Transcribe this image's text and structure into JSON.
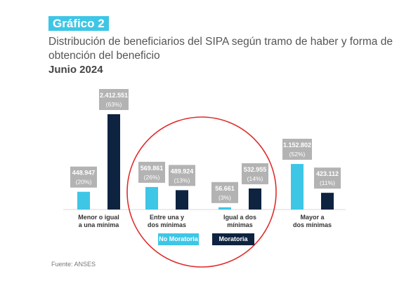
{
  "header": {
    "badge": "Gráfico 2",
    "title": "Distribución de beneficiarios del SIPA según tramo de haber y forma de obtención del beneficio",
    "subtitle": "Junio 2024"
  },
  "source": "Fuente: ANSES",
  "colors": {
    "no_moratoria": "#3ec6e6",
    "moratoria": "#0e2340",
    "badge": "#3ec6e6",
    "label_box": "#b3b3b3",
    "circle": "#e02b2b",
    "baseline": "#d9d9d9"
  },
  "chart_data": {
    "type": "bar",
    "categories": [
      "Menor o igual a una mínima",
      "Entre una y dos mínimas",
      "Igual a dos mínimas",
      "Mayor a dos mínimas"
    ],
    "category_lines": [
      [
        "Menor o igual",
        "a una mínima"
      ],
      [
        "Entre una y",
        "dos mínimas"
      ],
      [
        "Igual a dos",
        "mínimas"
      ],
      [
        "Mayor a",
        "dos mínimas"
      ]
    ],
    "series": [
      {
        "name": "No Moratoria",
        "values": [
          448947,
          569861,
          56661,
          1152802
        ],
        "labels": [
          "448.947",
          "569.861",
          "56.661",
          "1.152.802"
        ],
        "percents": [
          "(20%)",
          "(26%)",
          "(3%)",
          "(52%)"
        ]
      },
      {
        "name": "Moratoria",
        "values": [
          2412551,
          489924,
          532955,
          423112
        ],
        "labels": [
          "2.412.551",
          "489.924",
          "532.955",
          "423.112"
        ],
        "percents": [
          "(63%)",
          "(13%)",
          "(14%)",
          "(11%)"
        ]
      }
    ],
    "ylim": [
      0,
      2412551
    ],
    "grid": false,
    "legend": "bottom",
    "annotation": "red circle highlighting the middle two categories"
  }
}
